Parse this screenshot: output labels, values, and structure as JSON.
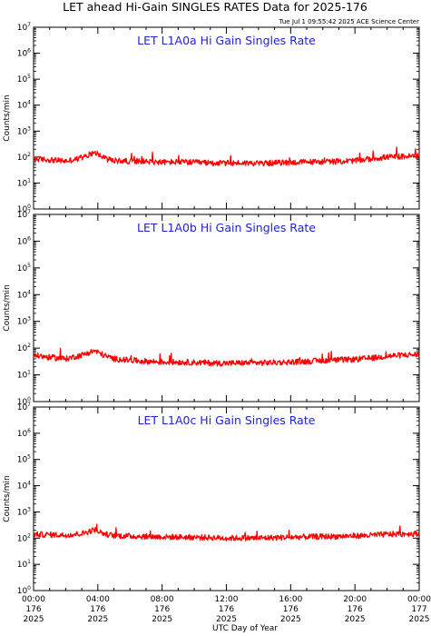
{
  "title": "LET ahead Hi-Gain SINGLES RATES Data for 2025-176",
  "timestamp": "Tue Jul  1 09:55:42 2025 ACE Science Center",
  "xlabel": "UTC Day of Year",
  "colors": {
    "series": "#ff0000",
    "panel_label": "#1f22d6",
    "axes": "#000000",
    "background": "#ffffff"
  },
  "chart_data": [
    {
      "type": "line",
      "panel_label": "LET L1A0a Hi Gain Singles Rate",
      "ylabel": "Counts/min",
      "yscale": "log",
      "ylim": [
        1,
        10000000
      ],
      "yticks": [
        1,
        10,
        100,
        1000,
        10000,
        100000,
        1000000,
        10000000
      ],
      "xlim": [
        "176 00:00",
        "177 00:00"
      ],
      "x_hours": [
        0,
        1,
        2,
        3,
        3.8,
        4.5,
        5,
        6,
        7,
        8,
        9,
        10,
        11,
        12,
        13,
        14,
        15,
        16,
        17,
        18,
        19,
        20,
        21,
        22,
        23,
        24
      ],
      "values": [
        85,
        78,
        70,
        90,
        160,
        85,
        72,
        70,
        68,
        63,
        65,
        62,
        60,
        58,
        60,
        57,
        60,
        62,
        65,
        66,
        68,
        72,
        85,
        100,
        105,
        110
      ]
    },
    {
      "type": "line",
      "panel_label": "LET L1A0b Hi Gain Singles Rate",
      "ylabel": "Counts/min",
      "yscale": "log",
      "ylim": [
        1,
        10000000
      ],
      "yticks": [
        1,
        10,
        100,
        1000,
        10000,
        100000,
        1000000,
        10000000
      ],
      "xlim": [
        "176 00:00",
        "177 00:00"
      ],
      "x_hours": [
        0,
        1,
        2,
        3,
        3.8,
        4.5,
        5,
        6,
        7,
        8,
        9,
        10,
        11,
        12,
        13,
        14,
        15,
        16,
        17,
        18,
        19,
        20,
        21,
        22,
        23,
        24
      ],
      "values": [
        55,
        45,
        40,
        55,
        80,
        50,
        40,
        35,
        32,
        30,
        30,
        29,
        28,
        27,
        28,
        28,
        29,
        30,
        32,
        34,
        36,
        38,
        42,
        50,
        55,
        58
      ]
    },
    {
      "type": "line",
      "panel_label": "LET L1A0c Hi Gain Singles Rate",
      "ylabel": "Counts/min",
      "yscale": "log",
      "ylim": [
        1,
        10000000
      ],
      "yticks": [
        1,
        10,
        100,
        1000,
        10000,
        100000,
        1000000,
        10000000
      ],
      "xlim": [
        "176 00:00",
        "177 00:00"
      ],
      "x_hours": [
        0,
        1,
        2,
        3,
        3.8,
        4.5,
        5,
        6,
        7,
        8,
        9,
        10,
        11,
        12,
        13,
        14,
        15,
        16,
        17,
        18,
        19,
        20,
        21,
        22,
        23,
        24
      ],
      "values": [
        140,
        135,
        130,
        150,
        210,
        140,
        125,
        120,
        115,
        112,
        110,
        108,
        105,
        100,
        102,
        100,
        105,
        108,
        112,
        115,
        118,
        122,
        128,
        140,
        145,
        150
      ]
    }
  ],
  "xticks": [
    {
      "time": "00:00",
      "doy": "176",
      "year": "2025"
    },
    {
      "time": "04:00",
      "doy": "176",
      "year": "2025"
    },
    {
      "time": "08:00",
      "doy": "176",
      "year": "2025"
    },
    {
      "time": "12:00",
      "doy": "176",
      "year": "2025"
    },
    {
      "time": "16:00",
      "doy": "176",
      "year": "2025"
    },
    {
      "time": "20:00",
      "doy": "176",
      "year": "2025"
    },
    {
      "time": "00:00",
      "doy": "177",
      "year": "2025"
    }
  ]
}
